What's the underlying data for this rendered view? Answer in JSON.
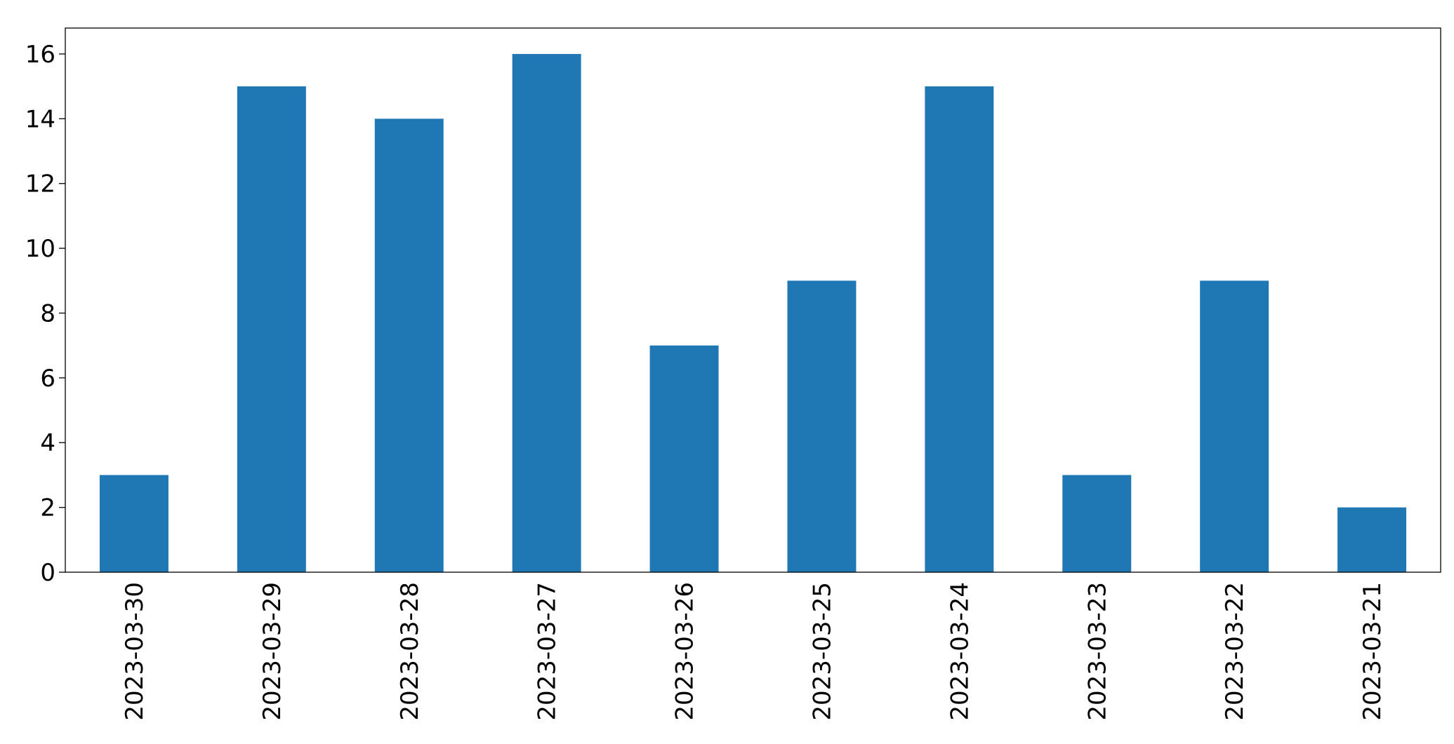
{
  "chart_data": {
    "type": "bar",
    "categories": [
      "2023-03-30",
      "2023-03-29",
      "2023-03-28",
      "2023-03-27",
      "2023-03-26",
      "2023-03-25",
      "2023-03-24",
      "2023-03-23",
      "2023-03-22",
      "2023-03-21"
    ],
    "values": [
      3,
      15,
      14,
      16,
      7,
      9,
      15,
      3,
      9,
      2
    ],
    "color": "#1f77b4",
    "ylim": [
      0,
      16.8
    ],
    "yticks": [
      0,
      2,
      4,
      6,
      8,
      10,
      12,
      14,
      16
    ],
    "grid": false
  }
}
